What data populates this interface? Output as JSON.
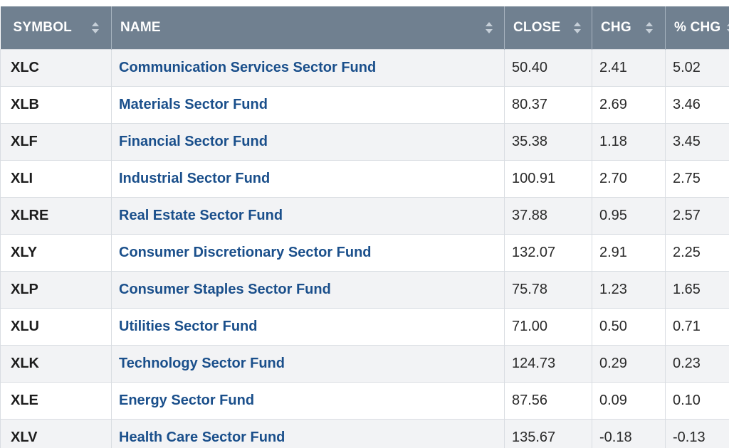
{
  "columns": {
    "symbol": "SYMBOL",
    "name": "NAME",
    "close": "CLOSE",
    "chg": "CHG",
    "pct_chg": "% CHG"
  },
  "rows": [
    {
      "symbol": "XLC",
      "name": "Communication Services Sector Fund",
      "close": "50.40",
      "chg": "2.41",
      "pct_chg": "5.02"
    },
    {
      "symbol": "XLB",
      "name": "Materials Sector Fund",
      "close": "80.37",
      "chg": "2.69",
      "pct_chg": "3.46"
    },
    {
      "symbol": "XLF",
      "name": "Financial Sector Fund",
      "close": "35.38",
      "chg": "1.18",
      "pct_chg": "3.45"
    },
    {
      "symbol": "XLI",
      "name": "Industrial Sector Fund",
      "close": "100.91",
      "chg": "2.70",
      "pct_chg": "2.75"
    },
    {
      "symbol": "XLRE",
      "name": "Real Estate Sector Fund",
      "close": "37.88",
      "chg": "0.95",
      "pct_chg": "2.57"
    },
    {
      "symbol": "XLY",
      "name": "Consumer Discretionary Sector Fund",
      "close": "132.07",
      "chg": "2.91",
      "pct_chg": "2.25"
    },
    {
      "symbol": "XLP",
      "name": "Consumer Staples Sector Fund",
      "close": "75.78",
      "chg": "1.23",
      "pct_chg": "1.65"
    },
    {
      "symbol": "XLU",
      "name": "Utilities Sector Fund",
      "close": "71.00",
      "chg": "0.50",
      "pct_chg": "0.71"
    },
    {
      "symbol": "XLK",
      "name": "Technology Sector Fund",
      "close": "124.73",
      "chg": "0.29",
      "pct_chg": "0.23"
    },
    {
      "symbol": "XLE",
      "name": "Energy Sector Fund",
      "close": "87.56",
      "chg": "0.09",
      "pct_chg": "0.10"
    },
    {
      "symbol": "XLV",
      "name": "Health Care Sector Fund",
      "close": "135.67",
      "chg": "-0.18",
      "pct_chg": "-0.13"
    }
  ]
}
